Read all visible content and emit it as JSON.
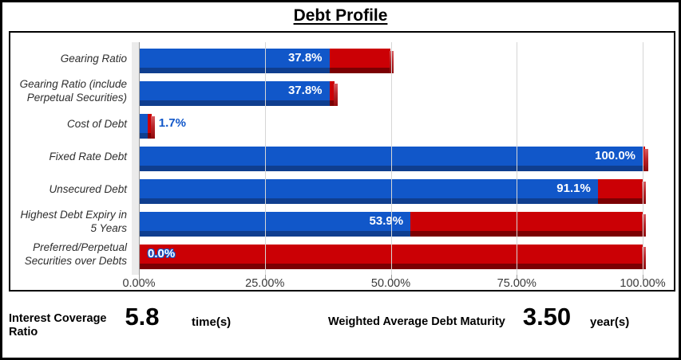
{
  "title": "Debt Profile",
  "chart_data": {
    "type": "bar",
    "orientation": "horizontal",
    "title": "Debt Profile",
    "categories": [
      "Gearing Ratio",
      "Gearing Ratio (include\nPerpetual Securities)",
      "Cost of Debt",
      "Fixed Rate Debt",
      "Unsecured Debt",
      "Highest Debt Expiry in\n5 Years",
      "Preferred/Perpetual\nSecurities over Debts"
    ],
    "series": [
      {
        "name": "value",
        "color": "#1157C9",
        "dark_color": "#0F3E8F",
        "values": [
          37.8,
          37.8,
          1.7,
          100.0,
          91.1,
          53.9,
          0.0
        ]
      },
      {
        "name": "remainder",
        "color": "#CB0005",
        "dark_color": "#7B0003",
        "values": [
          12.2,
          1.0,
          0.8,
          0.5,
          8.9,
          46.1,
          100.0
        ]
      }
    ],
    "value_labels": [
      {
        "text": "37.8%",
        "style": "white-in-blue"
      },
      {
        "text": "37.8%",
        "style": "white-in-blue"
      },
      {
        "text": "1.7%",
        "style": "blue-outside"
      },
      {
        "text": "100.0%",
        "style": "white-in-blue"
      },
      {
        "text": "91.1%",
        "style": "white-in-blue"
      },
      {
        "text": "53.9%",
        "style": "white-in-blue"
      },
      {
        "text": "0.0%",
        "style": "white-outline-left"
      }
    ],
    "x_ticks": [
      "0.00%",
      "25.00%",
      "50.00%",
      "75.00%",
      "100.00%"
    ],
    "xlim": [
      0,
      100
    ],
    "grid": true,
    "legend": false
  },
  "footer": {
    "interest_coverage": {
      "label": "Interest Coverage Ratio",
      "value": "5.8",
      "unit": "time(s)"
    },
    "debt_maturity": {
      "label": "Weighted Average Debt Maturity",
      "value": "3.50",
      "unit": "year(s)"
    }
  },
  "colors": {
    "bar_blue": "#1157C9",
    "bar_blue_dark": "#0F3E8F",
    "bar_red": "#CB0005",
    "bar_red_dark": "#7B0003",
    "gridline": "#D6D6D6",
    "axis_line": "#9A9A9A",
    "wall": "#EBEBEB",
    "axis_text": "#3A3A3A"
  }
}
